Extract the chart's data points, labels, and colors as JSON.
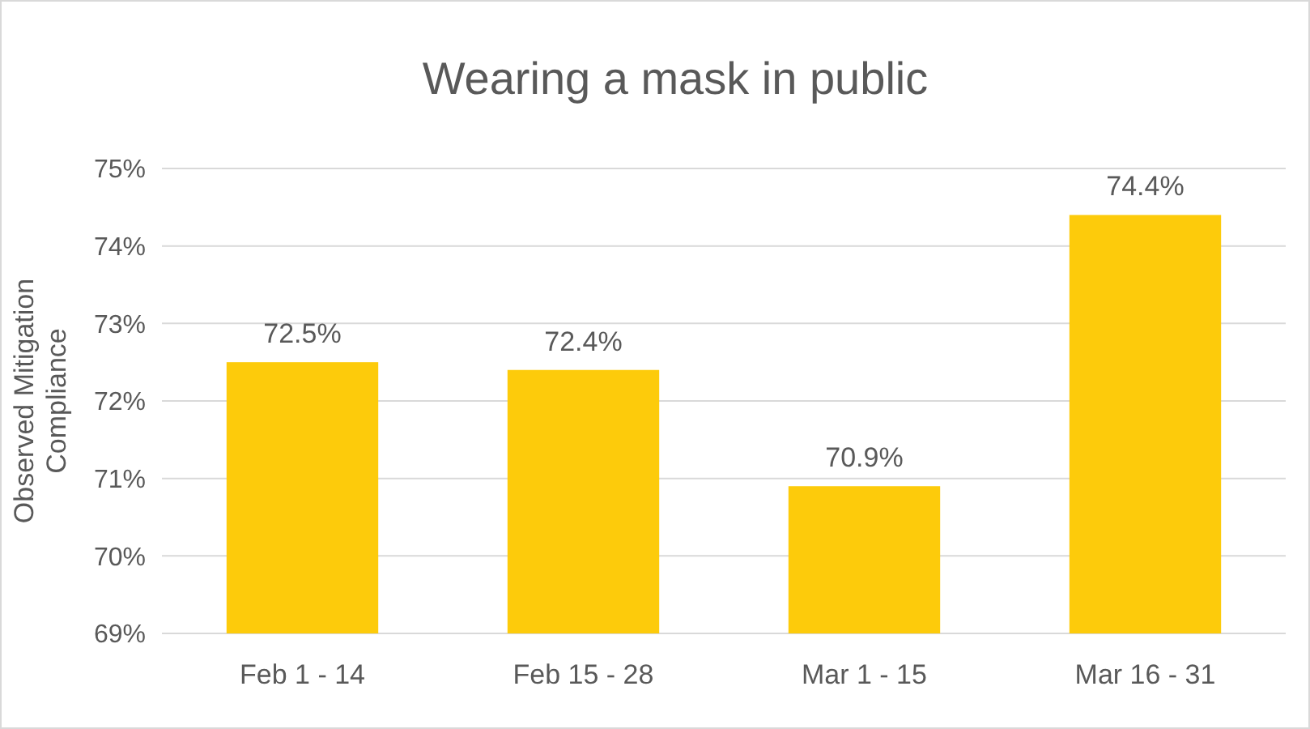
{
  "chart_data": {
    "type": "bar",
    "title": "Wearing a mask in public",
    "ylabel": "Observed Mitigation Compliance",
    "categories": [
      "Feb 1 - 14",
      "Feb 15 - 28",
      "Mar 1 - 15",
      "Mar 16 - 31"
    ],
    "values": [
      72.5,
      72.4,
      70.9,
      74.4
    ],
    "value_labels": [
      "72.5%",
      "72.4%",
      "70.9%",
      "74.4%"
    ],
    "color": "#fdcb0b",
    "ylim": [
      69,
      75
    ],
    "yticks": [
      {
        "value": 69,
        "label": "69%"
      },
      {
        "value": 70,
        "label": "70%"
      },
      {
        "value": 71,
        "label": "71%"
      },
      {
        "value": 72,
        "label": "72%"
      },
      {
        "value": 73,
        "label": "73%"
      },
      {
        "value": 74,
        "label": "74%"
      },
      {
        "value": 75,
        "label": "75%"
      }
    ],
    "grid": "y"
  }
}
